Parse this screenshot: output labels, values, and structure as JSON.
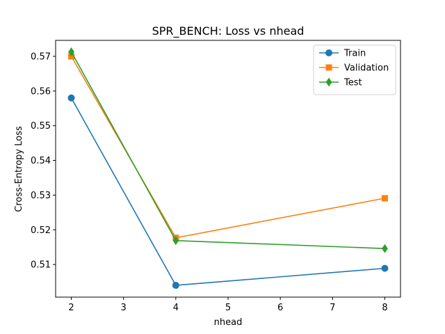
{
  "chart_data": {
    "type": "line",
    "title": "SPR_BENCH: Loss vs nhead",
    "xlabel": "nhead",
    "ylabel": "Cross-Entropy Loss",
    "x": [
      2,
      4,
      8
    ],
    "xlim": [
      1.7,
      8.3
    ],
    "ylim": [
      0.5006,
      0.5746
    ],
    "xticks": [
      2,
      3,
      4,
      5,
      6,
      7,
      8
    ],
    "yticks": [
      0.51,
      0.52,
      0.53,
      0.54,
      0.55,
      0.56,
      0.57
    ],
    "ytick_labels": [
      "0.51",
      "0.52",
      "0.53",
      "0.54",
      "0.55",
      "0.56",
      "0.57"
    ],
    "grid": false,
    "legend_position": "top-right",
    "series": [
      {
        "name": "Train",
        "values": [
          0.558,
          0.504,
          0.5089
        ],
        "color": "#1f77b4",
        "marker": "circle"
      },
      {
        "name": "Validation",
        "values": [
          0.57,
          0.5177,
          0.5291
        ],
        "color": "#ff7f0e",
        "marker": "square"
      },
      {
        "name": "Test",
        "values": [
          0.5713,
          0.5169,
          0.5146
        ],
        "color": "#2ca02c",
        "marker": "diamond"
      }
    ]
  }
}
